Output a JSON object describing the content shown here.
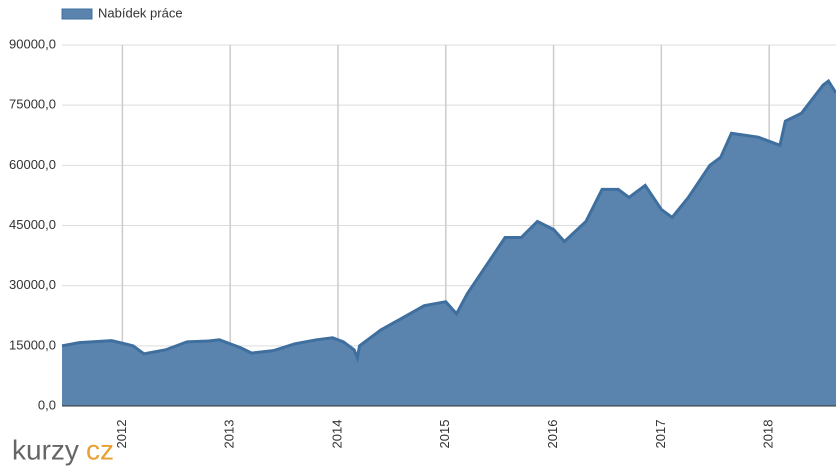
{
  "chart_data": {
    "type": "area",
    "watermark": [
      "kurzy",
      "cz"
    ],
    "series": [
      {
        "name": "Nabídek práce",
        "color": "#3f6f9f",
        "fill": "#5a84ae",
        "x": [
          2011.44,
          2011.6,
          2011.9,
          2012.1,
          2012.2,
          2012.4,
          2012.6,
          2012.8,
          2012.9,
          2013.1,
          2013.2,
          2013.4,
          2013.6,
          2013.8,
          2013.95,
          2014.05,
          2014.15,
          2014.18,
          2014.2,
          2014.4,
          2014.6,
          2014.8,
          2015.0,
          2015.1,
          2015.2,
          2015.4,
          2015.55,
          2015.7,
          2015.85,
          2016.0,
          2016.1,
          2016.3,
          2016.45,
          2016.6,
          2016.7,
          2016.85,
          2017.0,
          2017.1,
          2017.25,
          2017.45,
          2017.55,
          2017.65,
          2017.9,
          2018.1,
          2018.15,
          2018.3,
          2018.5,
          2018.55,
          2018.62
        ],
        "values": [
          15000,
          15800,
          16300,
          15000,
          13000,
          14000,
          16000,
          16200,
          16500,
          14500,
          13200,
          13800,
          15500,
          16500,
          17000,
          16000,
          14000,
          12000,
          15000,
          19000,
          22000,
          25000,
          26000,
          23000,
          28000,
          36000,
          42000,
          42000,
          46000,
          44000,
          41000,
          46000,
          54000,
          54000,
          52000,
          55000,
          49000,
          47000,
          52000,
          60000,
          62000,
          68000,
          67000,
          65000,
          71000,
          73000,
          80000,
          81000,
          78000
        ]
      }
    ],
    "xlim": [
      2011.44,
      2018.62
    ],
    "xticks": [
      2012,
      2013,
      2014,
      2015,
      2016,
      2017,
      2018
    ],
    "ylim": [
      0,
      90000
    ],
    "yticks": [
      {
        "value": 0,
        "label": "0,0"
      },
      {
        "value": 15000,
        "label": "15000,0"
      },
      {
        "value": 30000,
        "label": "30000,0"
      },
      {
        "value": 45000,
        "label": "45000,0"
      },
      {
        "value": 60000,
        "label": "60000,0"
      },
      {
        "value": 75000,
        "label": "75000,0"
      },
      {
        "value": 90000,
        "label": "90000,0"
      }
    ],
    "grid": true
  }
}
